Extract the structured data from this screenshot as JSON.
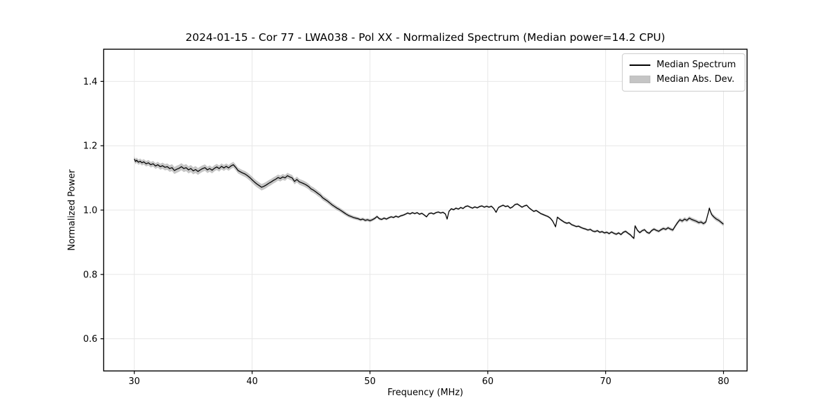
{
  "figure": {
    "background": "#ffffff"
  },
  "chart_data": {
    "type": "line",
    "title": "2024-01-15 - Cor 77 - LWA038 - Pol XX - Normalized Spectrum (Median power=14.2 CPU)",
    "xlabel": "Frequency (MHz)",
    "ylabel": "Normalized Power",
    "xlim": [
      27.4,
      82.0
    ],
    "ylim": [
      0.5,
      1.5
    ],
    "xticks": [
      30,
      40,
      50,
      60,
      70,
      80
    ],
    "yticks": [
      0.6,
      0.8,
      1.0,
      1.2,
      1.4
    ],
    "grid": true,
    "grid_color": "#e7e7e7",
    "frame_color": "#000000",
    "legend": {
      "position": "upper right",
      "entries": [
        {
          "label": "Median Spectrum",
          "type": "line",
          "color": "#000000"
        },
        {
          "label": "Median Abs. Dev.",
          "type": "patch",
          "color": "#c5c5c5"
        }
      ]
    },
    "series": [
      {
        "name": "Median Spectrum",
        "color": "#000000",
        "x_unit": "MHz",
        "points": [
          [
            30.0,
            1.159
          ],
          [
            30.1,
            1.151
          ],
          [
            30.2,
            1.155
          ],
          [
            30.35,
            1.149
          ],
          [
            30.5,
            1.152
          ],
          [
            30.65,
            1.147
          ],
          [
            30.8,
            1.15
          ],
          [
            31.0,
            1.144
          ],
          [
            31.2,
            1.147
          ],
          [
            31.4,
            1.141
          ],
          [
            31.6,
            1.144
          ],
          [
            31.8,
            1.137
          ],
          [
            32.0,
            1.141
          ],
          [
            32.2,
            1.135
          ],
          [
            32.4,
            1.138
          ],
          [
            32.6,
            1.133
          ],
          [
            32.8,
            1.135
          ],
          [
            33.0,
            1.129
          ],
          [
            33.2,
            1.132
          ],
          [
            33.4,
            1.123
          ],
          [
            33.6,
            1.127
          ],
          [
            33.8,
            1.13
          ],
          [
            34.0,
            1.135
          ],
          [
            34.2,
            1.129
          ],
          [
            34.4,
            1.132
          ],
          [
            34.6,
            1.125
          ],
          [
            34.8,
            1.129
          ],
          [
            35.0,
            1.122
          ],
          [
            35.2,
            1.126
          ],
          [
            35.4,
            1.12
          ],
          [
            35.6,
            1.125
          ],
          [
            35.8,
            1.129
          ],
          [
            36.0,
            1.132
          ],
          [
            36.2,
            1.125
          ],
          [
            36.4,
            1.129
          ],
          [
            36.6,
            1.124
          ],
          [
            36.8,
            1.13
          ],
          [
            37.0,
            1.134
          ],
          [
            37.2,
            1.129
          ],
          [
            37.4,
            1.136
          ],
          [
            37.6,
            1.131
          ],
          [
            37.8,
            1.136
          ],
          [
            38.0,
            1.131
          ],
          [
            38.2,
            1.137
          ],
          [
            38.4,
            1.141
          ],
          [
            38.6,
            1.133
          ],
          [
            38.8,
            1.123
          ],
          [
            39.0,
            1.119
          ],
          [
            39.2,
            1.115
          ],
          [
            39.4,
            1.112
          ],
          [
            39.6,
            1.107
          ],
          [
            39.8,
            1.101
          ],
          [
            40.0,
            1.094
          ],
          [
            40.2,
            1.087
          ],
          [
            40.4,
            1.081
          ],
          [
            40.6,
            1.076
          ],
          [
            40.8,
            1.071
          ],
          [
            41.0,
            1.074
          ],
          [
            41.2,
            1.078
          ],
          [
            41.4,
            1.083
          ],
          [
            41.6,
            1.087
          ],
          [
            41.8,
            1.092
          ],
          [
            42.0,
            1.096
          ],
          [
            42.2,
            1.101
          ],
          [
            42.4,
            1.098
          ],
          [
            42.6,
            1.103
          ],
          [
            42.8,
            1.1
          ],
          [
            43.0,
            1.107
          ],
          [
            43.2,
            1.103
          ],
          [
            43.4,
            1.1
          ],
          [
            43.6,
            1.089
          ],
          [
            43.8,
            1.095
          ],
          [
            44.0,
            1.088
          ],
          [
            44.2,
            1.085
          ],
          [
            44.4,
            1.082
          ],
          [
            44.6,
            1.078
          ],
          [
            44.8,
            1.073
          ],
          [
            45.0,
            1.066
          ],
          [
            45.2,
            1.062
          ],
          [
            45.4,
            1.057
          ],
          [
            45.6,
            1.051
          ],
          [
            45.8,
            1.046
          ],
          [
            46.0,
            1.038
          ],
          [
            46.2,
            1.033
          ],
          [
            46.4,
            1.028
          ],
          [
            46.6,
            1.022
          ],
          [
            46.8,
            1.016
          ],
          [
            47.0,
            1.011
          ],
          [
            47.2,
            1.006
          ],
          [
            47.4,
            1.002
          ],
          [
            47.6,
            0.997
          ],
          [
            47.8,
            0.992
          ],
          [
            48.0,
            0.987
          ],
          [
            48.2,
            0.983
          ],
          [
            48.4,
            0.98
          ],
          [
            48.6,
            0.977
          ],
          [
            48.8,
            0.975
          ],
          [
            49.0,
            0.973
          ],
          [
            49.2,
            0.97
          ],
          [
            49.4,
            0.972
          ],
          [
            49.6,
            0.968
          ],
          [
            49.8,
            0.97
          ],
          [
            50.0,
            0.967
          ],
          [
            50.2,
            0.97
          ],
          [
            50.4,
            0.974
          ],
          [
            50.6,
            0.98
          ],
          [
            50.8,
            0.973
          ],
          [
            51.0,
            0.971
          ],
          [
            51.2,
            0.975
          ],
          [
            51.4,
            0.972
          ],
          [
            51.6,
            0.976
          ],
          [
            51.8,
            0.979
          ],
          [
            52.0,
            0.977
          ],
          [
            52.2,
            0.981
          ],
          [
            52.4,
            0.978
          ],
          [
            52.6,
            0.982
          ],
          [
            52.8,
            0.984
          ],
          [
            53.0,
            0.987
          ],
          [
            53.2,
            0.991
          ],
          [
            53.4,
            0.988
          ],
          [
            53.6,
            0.992
          ],
          [
            53.8,
            0.989
          ],
          [
            54.0,
            0.992
          ],
          [
            54.2,
            0.987
          ],
          [
            54.4,
            0.99
          ],
          [
            54.6,
            0.985
          ],
          [
            54.8,
            0.979
          ],
          [
            55.0,
            0.989
          ],
          [
            55.2,
            0.991
          ],
          [
            55.4,
            0.988
          ],
          [
            55.6,
            0.992
          ],
          [
            55.8,
            0.994
          ],
          [
            56.0,
            0.991
          ],
          [
            56.2,
            0.993
          ],
          [
            56.4,
            0.988
          ],
          [
            56.55,
            0.972
          ],
          [
            56.7,
            0.996
          ],
          [
            56.9,
            1.004
          ],
          [
            57.1,
            1.001
          ],
          [
            57.3,
            1.006
          ],
          [
            57.5,
            1.003
          ],
          [
            57.7,
            1.008
          ],
          [
            57.9,
            1.005
          ],
          [
            58.1,
            1.011
          ],
          [
            58.3,
            1.013
          ],
          [
            58.5,
            1.009
          ],
          [
            58.7,
            1.006
          ],
          [
            58.9,
            1.01
          ],
          [
            59.1,
            1.007
          ],
          [
            59.3,
            1.011
          ],
          [
            59.5,
            1.013
          ],
          [
            59.7,
            1.009
          ],
          [
            59.9,
            1.012
          ],
          [
            60.1,
            1.009
          ],
          [
            60.3,
            1.012
          ],
          [
            60.5,
            1.005
          ],
          [
            60.7,
            0.993
          ],
          [
            60.9,
            1.008
          ],
          [
            61.1,
            1.012
          ],
          [
            61.3,
            1.015
          ],
          [
            61.5,
            1.011
          ],
          [
            61.7,
            1.013
          ],
          [
            61.9,
            1.006
          ],
          [
            62.1,
            1.01
          ],
          [
            62.3,
            1.017
          ],
          [
            62.5,
            1.019
          ],
          [
            62.7,
            1.014
          ],
          [
            62.9,
            1.009
          ],
          [
            63.1,
            1.013
          ],
          [
            63.3,
            1.015
          ],
          [
            63.5,
            1.007
          ],
          [
            63.7,
            1.001
          ],
          [
            63.9,
            0.996
          ],
          [
            64.1,
            0.999
          ],
          [
            64.3,
            0.994
          ],
          [
            64.5,
            0.989
          ],
          [
            64.7,
            0.986
          ],
          [
            64.9,
            0.983
          ],
          [
            65.1,
            0.98
          ],
          [
            65.3,
            0.975
          ],
          [
            65.5,
            0.966
          ],
          [
            65.75,
            0.948
          ],
          [
            65.9,
            0.978
          ],
          [
            66.1,
            0.972
          ],
          [
            66.3,
            0.967
          ],
          [
            66.5,
            0.962
          ],
          [
            66.7,
            0.959
          ],
          [
            66.9,
            0.961
          ],
          [
            67.1,
            0.955
          ],
          [
            67.3,
            0.952
          ],
          [
            67.5,
            0.949
          ],
          [
            67.7,
            0.95
          ],
          [
            67.9,
            0.946
          ],
          [
            68.1,
            0.943
          ],
          [
            68.3,
            0.941
          ],
          [
            68.5,
            0.938
          ],
          [
            68.7,
            0.94
          ],
          [
            68.9,
            0.935
          ],
          [
            69.1,
            0.933
          ],
          [
            69.3,
            0.936
          ],
          [
            69.5,
            0.931
          ],
          [
            69.7,
            0.933
          ],
          [
            69.9,
            0.929
          ],
          [
            70.1,
            0.931
          ],
          [
            70.3,
            0.927
          ],
          [
            70.5,
            0.932
          ],
          [
            70.7,
            0.928
          ],
          [
            70.9,
            0.925
          ],
          [
            71.1,
            0.929
          ],
          [
            71.3,
            0.924
          ],
          [
            71.5,
            0.931
          ],
          [
            71.7,
            0.934
          ],
          [
            71.9,
            0.928
          ],
          [
            72.1,
            0.923
          ],
          [
            72.25,
            0.917
          ],
          [
            72.4,
            0.912
          ],
          [
            72.5,
            0.951
          ],
          [
            72.7,
            0.937
          ],
          [
            72.9,
            0.93
          ],
          [
            73.1,
            0.936
          ],
          [
            73.3,
            0.939
          ],
          [
            73.5,
            0.931
          ],
          [
            73.7,
            0.928
          ],
          [
            73.9,
            0.936
          ],
          [
            74.1,
            0.941
          ],
          [
            74.3,
            0.937
          ],
          [
            74.5,
            0.934
          ],
          [
            74.7,
            0.939
          ],
          [
            74.9,
            0.943
          ],
          [
            75.1,
            0.94
          ],
          [
            75.3,
            0.945
          ],
          [
            75.5,
            0.941
          ],
          [
            75.7,
            0.938
          ],
          [
            75.9,
            0.95
          ],
          [
            76.1,
            0.961
          ],
          [
            76.3,
            0.97
          ],
          [
            76.5,
            0.966
          ],
          [
            76.7,
            0.972
          ],
          [
            76.9,
            0.968
          ],
          [
            77.1,
            0.975
          ],
          [
            77.3,
            0.971
          ],
          [
            77.5,
            0.968
          ],
          [
            77.7,
            0.965
          ],
          [
            77.9,
            0.961
          ],
          [
            78.1,
            0.963
          ],
          [
            78.3,
            0.958
          ],
          [
            78.5,
            0.963
          ],
          [
            78.7,
            0.99
          ],
          [
            78.8,
            1.006
          ],
          [
            78.9,
            0.995
          ],
          [
            79.0,
            0.986
          ],
          [
            79.2,
            0.978
          ],
          [
            79.4,
            0.972
          ],
          [
            79.6,
            0.968
          ],
          [
            79.8,
            0.962
          ],
          [
            80.0,
            0.956
          ]
        ]
      }
    ],
    "band": {
      "name": "Median Abs. Dev.",
      "fill_color": "rgba(128,128,128,0.45)",
      "halfwidth_points": [
        [
          30,
          0.008
        ],
        [
          32,
          0.009
        ],
        [
          33.5,
          0.011
        ],
        [
          35,
          0.011
        ],
        [
          36,
          0.01
        ],
        [
          38,
          0.009
        ],
        [
          39,
          0.009
        ],
        [
          40,
          0.01
        ],
        [
          41,
          0.01
        ],
        [
          43,
          0.009
        ],
        [
          45,
          0.009
        ],
        [
          46,
          0.008
        ],
        [
          47,
          0.007
        ],
        [
          48,
          0.006
        ],
        [
          49,
          0.005
        ],
        [
          50,
          0.005
        ],
        [
          51,
          0.004
        ],
        [
          52,
          0.0035
        ],
        [
          54,
          0.003
        ],
        [
          56,
          0.003
        ],
        [
          58,
          0.003
        ],
        [
          60,
          0.003
        ],
        [
          62,
          0.003
        ],
        [
          64,
          0.003
        ],
        [
          66,
          0.0035
        ],
        [
          68,
          0.0035
        ],
        [
          70,
          0.004
        ],
        [
          72,
          0.004
        ],
        [
          74,
          0.0045
        ],
        [
          75.5,
          0.005
        ],
        [
          76.5,
          0.006
        ],
        [
          77.5,
          0.006
        ],
        [
          78.5,
          0.0055
        ],
        [
          79.2,
          0.0065
        ],
        [
          80,
          0.006
        ]
      ]
    }
  }
}
